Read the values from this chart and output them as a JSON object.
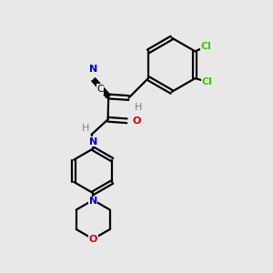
{
  "background_color": "#e8e8e8",
  "bond_color": "#000000",
  "atom_colors": {
    "C": "#000000",
    "N": "#0000cc",
    "O": "#cc0000",
    "Cl": "#33cc00",
    "H": "#808080"
  },
  "figsize": [
    3.0,
    3.0
  ],
  "dpi": 100,
  "xlim": [
    0,
    10
  ],
  "ylim": [
    0,
    10
  ]
}
